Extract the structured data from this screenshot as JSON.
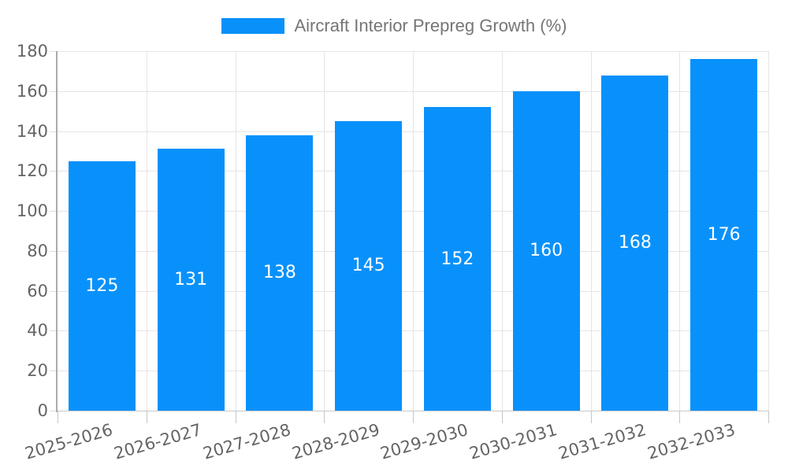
{
  "chart_data": {
    "type": "bar",
    "title": "",
    "legend": {
      "label": "Aircraft Interior Prepreg Growth (%)",
      "position": "top"
    },
    "categories": [
      "2025-2026",
      "2026-2027",
      "2027-2028",
      "2028-2029",
      "2029-2030",
      "2030-2031",
      "2031-2032",
      "2032-2033"
    ],
    "values": [
      125,
      131,
      138,
      145,
      152,
      160,
      168,
      176
    ],
    "xlabel": "",
    "ylabel": "",
    "ylim": [
      0,
      180
    ],
    "yticks": [
      0,
      20,
      40,
      60,
      80,
      100,
      120,
      140,
      160,
      180
    ],
    "grid": true,
    "colors": {
      "bar": "#0991fb",
      "value_label": "#ffffff",
      "tick_text": "#646464",
      "legend_text": "#757575",
      "gridline": "#e5e5e5",
      "y_axis_line": "#ababab",
      "x_axis_line": "#c9c9c9",
      "tick_mark": "#c6c6c6",
      "y_tick_mark": "#dedede",
      "background": "#ffffff"
    }
  }
}
